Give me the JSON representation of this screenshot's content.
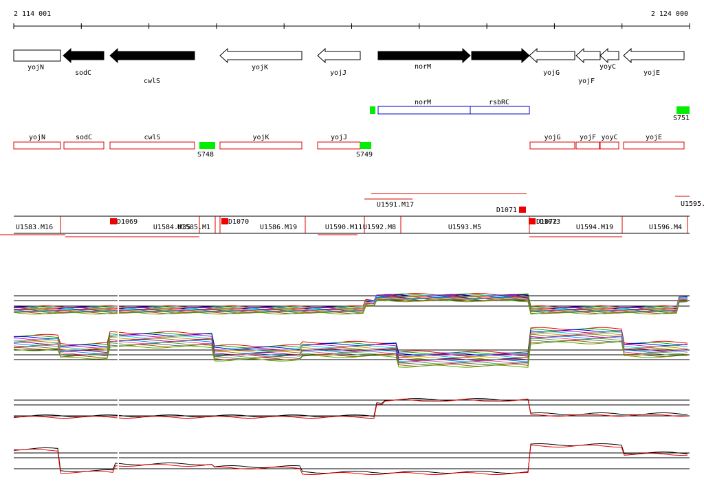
{
  "ruler": {
    "start": "2 114 001",
    "end": "2 124 000"
  },
  "genes": [
    "yojN",
    "sodC",
    "cwlS",
    "yojK",
    "yojJ",
    "norM",
    "rsbRC",
    "yojG",
    "yojF",
    "yoyC",
    "yojE"
  ],
  "transcripts": [
    "norM",
    "rsbRC"
  ],
  "promoters": [
    "S751"
  ],
  "annotated_genes": [
    "yojN",
    "sodC",
    "cwlS",
    "yojK",
    "yojJ",
    "yojG",
    "yojF",
    "yoyC",
    "yojE"
  ],
  "sites": [
    "S748",
    "S749"
  ],
  "segments": [
    "U1583.M16",
    "U1584.M35",
    "U1585.M1",
    "U1586.M19",
    "U1590.M11",
    "U1592.M8",
    "U1593.M5",
    "U1594.M19",
    "U1596.M4",
    "U1591.M17",
    "U1595."
  ],
  "downregions": [
    "D1069",
    "D1070",
    "D1071",
    "D1072",
    "D1073"
  ]
}
